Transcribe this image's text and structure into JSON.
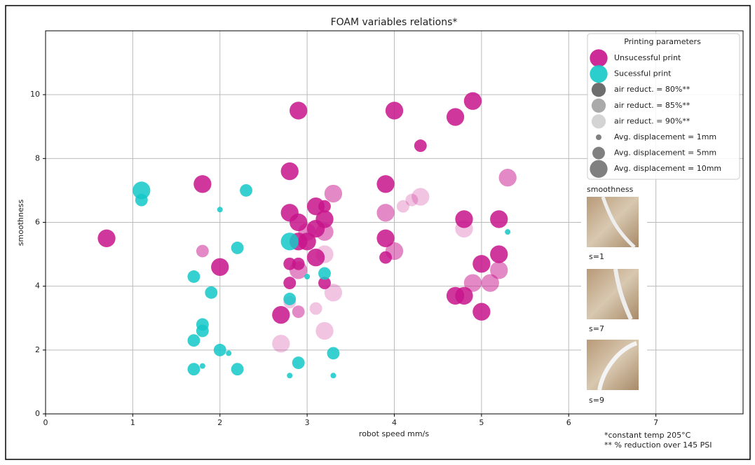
{
  "chart_data": {
    "type": "scatter",
    "title": "FOAM variables relations*",
    "x_label": "robot speed mm/s",
    "y_label": "smoothness",
    "xlim": [
      0,
      8
    ],
    "xticks": [
      0,
      1,
      2,
      3,
      4,
      5,
      6,
      7
    ],
    "ylim": [
      0,
      12
    ],
    "yticks": [
      0,
      2,
      4,
      6,
      8,
      10
    ],
    "grid": true,
    "legend_position": "upper right",
    "series": [
      {
        "name": "Unsucessful print",
        "color": "#c8148c",
        "x": [
          0.7,
          1.8,
          1.8,
          2.0,
          2.8,
          2.9,
          4.0,
          4.7,
          4.9,
          4.3,
          3.9,
          5.3,
          2.8,
          2.9,
          3.1,
          3.2,
          3.2,
          3.0,
          3.1,
          3.2,
          3.3,
          2.9,
          3.0,
          3.9,
          4.1,
          4.2,
          4.3,
          3.9,
          4.0,
          3.9,
          4.8,
          4.8,
          5.2,
          5.2,
          5.0,
          5.2,
          4.9,
          5.1,
          4.7,
          4.8,
          5.0,
          2.8,
          2.9,
          2.9,
          3.1,
          3.2,
          2.8,
          3.2,
          3.3,
          2.8,
          2.9,
          3.1,
          2.7,
          3.2,
          2.7
        ],
        "values": [
          5.5,
          7.2,
          5.1,
          4.6,
          7.6,
          9.5,
          9.5,
          9.3,
          9.8,
          8.4,
          7.2,
          7.4,
          6.3,
          6.0,
          6.5,
          6.5,
          6.1,
          5.7,
          5.8,
          5.7,
          6.9,
          5.4,
          5.4,
          6.3,
          6.5,
          6.7,
          6.8,
          5.5,
          5.1,
          4.9,
          6.1,
          5.8,
          6.1,
          5.0,
          4.7,
          4.5,
          4.1,
          4.1,
          3.7,
          3.7,
          3.2,
          4.7,
          4.7,
          4.5,
          4.9,
          5.0,
          4.1,
          4.1,
          3.8,
          3.5,
          3.2,
          3.3,
          3.1,
          2.6,
          2.2
        ],
        "sizes": [
          10,
          10,
          5,
          10,
          10,
          10,
          10,
          10,
          10,
          5,
          10,
          10,
          10,
          10,
          10,
          5,
          10,
          10,
          10,
          10,
          10,
          10,
          10,
          10,
          5,
          5,
          10,
          10,
          10,
          5,
          10,
          10,
          10,
          10,
          10,
          10,
          10,
          10,
          10,
          10,
          10,
          5,
          5,
          10,
          10,
          10,
          5,
          5,
          10,
          5,
          5,
          5,
          10,
          10,
          10
        ],
        "air_reduction": [
          80,
          80,
          85,
          80,
          80,
          80,
          80,
          80,
          80,
          80,
          80,
          85,
          80,
          80,
          80,
          80,
          80,
          85,
          80,
          85,
          85,
          80,
          80,
          85,
          90,
          90,
          90,
          80,
          85,
          80,
          80,
          90,
          80,
          80,
          80,
          85,
          85,
          85,
          80,
          80,
          80,
          80,
          80,
          85,
          80,
          90,
          80,
          80,
          90,
          90,
          85,
          90,
          80,
          90,
          90
        ]
      },
      {
        "name": "Sucessful print",
        "color": "#14c8c8",
        "x": [
          1.1,
          1.1,
          2.3,
          2.0,
          2.2,
          2.8,
          5.3,
          1.7,
          1.9,
          3.2,
          3.0,
          2.8,
          1.8,
          1.8,
          1.7,
          2.0,
          2.1,
          3.3,
          2.9,
          1.7,
          1.8,
          2.2,
          2.8,
          3.3
        ],
        "values": [
          7.0,
          6.7,
          7.0,
          6.4,
          5.2,
          5.4,
          5.7,
          4.3,
          3.8,
          4.4,
          4.3,
          3.6,
          2.8,
          2.6,
          2.3,
          2.0,
          1.9,
          1.9,
          1.6,
          1.4,
          1.5,
          1.4,
          1.2,
          1.2
        ],
        "sizes": [
          10,
          5,
          5,
          1,
          5,
          10,
          1,
          5,
          5,
          5,
          1,
          5,
          5,
          5,
          5,
          5,
          1,
          5,
          5,
          5,
          1,
          5,
          1,
          1
        ],
        "air_reduction": [
          80,
          80,
          80,
          80,
          80,
          80,
          80,
          80,
          80,
          80,
          80,
          80,
          80,
          80,
          80,
          80,
          80,
          80,
          80,
          80,
          80,
          80,
          80,
          80
        ]
      }
    ],
    "legend": {
      "title": "Printing parameters",
      "air": [
        {
          "name": "air reduct. = 80%**",
          "value": 80,
          "opacity": 0.85
        },
        {
          "name": "air reduct. = 85%**",
          "value": 85,
          "opacity": 0.5
        },
        {
          "name": "air reduct. = 90%**",
          "value": 90,
          "opacity": 0.25
        }
      ],
      "displacement": [
        {
          "name": "Avg. displacement = 1mm",
          "value": 1
        },
        {
          "name": "Avg. displacement = 5mm",
          "value": 5
        },
        {
          "name": "Avg. displacement = 10mm",
          "value": 10
        }
      ]
    },
    "insets": {
      "title": "smoothness",
      "labels": [
        "s=1",
        "s=7",
        "s=9"
      ]
    },
    "notes": [
      "*constant temp 205°C",
      "** % reduction over 145 PSI"
    ]
  }
}
